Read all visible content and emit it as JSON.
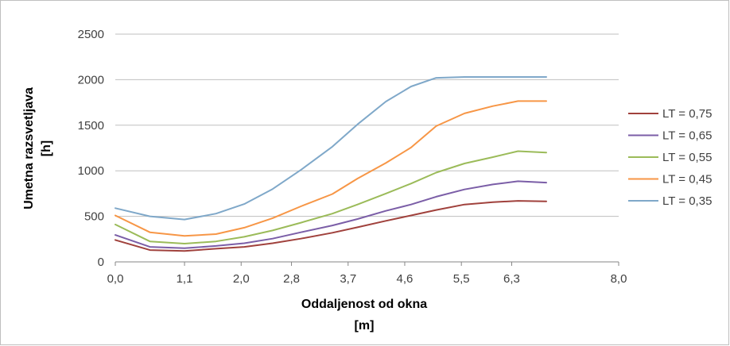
{
  "chart_data": {
    "type": "line",
    "xlabel_line1": "Oddaljenost od okna",
    "xlabel_line2": "[m]",
    "ylabel_line1": "Umetna razsvetljava",
    "ylabel_line2": "[h]",
    "xlim": [
      0,
      8
    ],
    "ylim": [
      0,
      2500
    ],
    "x_ticks": [
      0,
      1.1,
      2.0,
      2.8,
      3.7,
      4.6,
      5.5,
      6.3,
      8.0
    ],
    "x_tick_labels": [
      "0,0",
      "1,1",
      "2,0",
      "2,8",
      "3,7",
      "4,6",
      "5,5",
      "6,3",
      "8,0"
    ],
    "y_ticks": [
      0,
      500,
      1000,
      1500,
      2000,
      2500
    ],
    "y_tick_labels": [
      "0",
      "500",
      "1000",
      "1500",
      "2000",
      "2500"
    ],
    "grid": true,
    "legend_position": "right",
    "x": [
      0.0,
      0.55,
      1.1,
      1.6,
      2.05,
      2.5,
      2.95,
      3.45,
      3.85,
      4.3,
      4.7,
      5.1,
      5.55,
      6.0,
      6.4,
      6.85
    ],
    "series": [
      {
        "name": "LT = 0,75",
        "color": "#a0413c",
        "values": [
          240,
          130,
          120,
          145,
          165,
          205,
          255,
          320,
          380,
          450,
          510,
          570,
          630,
          655,
          670,
          665
        ]
      },
      {
        "name": "LT = 0,65",
        "color": "#7b5ea7",
        "values": [
          295,
          165,
          150,
          175,
          205,
          255,
          325,
          400,
          470,
          560,
          630,
          715,
          795,
          850,
          885,
          870
        ]
      },
      {
        "name": "LT = 0,55",
        "color": "#9bbb59",
        "values": [
          410,
          225,
          200,
          225,
          275,
          345,
          430,
          530,
          630,
          750,
          860,
          980,
          1080,
          1150,
          1215,
          1200
        ]
      },
      {
        "name": "LT = 0,45",
        "color": "#f79646",
        "values": [
          510,
          325,
          285,
          305,
          375,
          480,
          610,
          745,
          915,
          1085,
          1255,
          1490,
          1630,
          1710,
          1765,
          1765
        ]
      },
      {
        "name": "LT = 0,35",
        "color": "#7fa8c9",
        "values": [
          590,
          500,
          465,
          530,
          635,
          800,
          1010,
          1265,
          1510,
          1760,
          1925,
          2020,
          2030,
          2030,
          2030,
          2030
        ]
      }
    ]
  }
}
